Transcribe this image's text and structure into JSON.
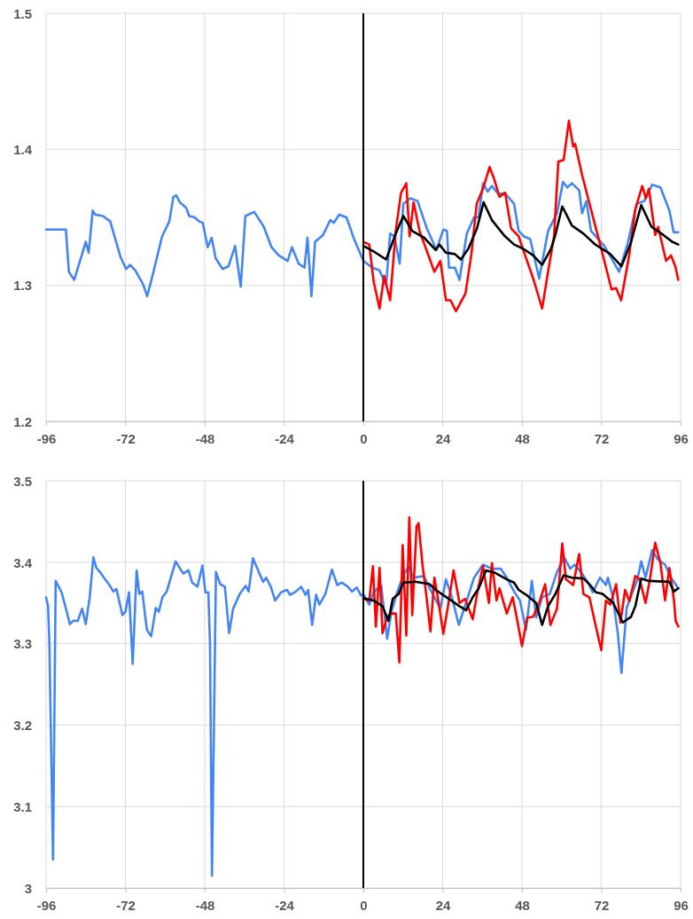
{
  "chart_data": [
    {
      "type": "line",
      "xlim": [
        -96,
        96
      ],
      "xticks": [
        -96,
        -72,
        -48,
        -24,
        0,
        24,
        48,
        72,
        96
      ],
      "ylim": [
        1.2,
        1.5
      ],
      "yticks": [
        1.2,
        1.3,
        1.4,
        1.5
      ],
      "grid": true,
      "marker": "none",
      "line_style": "solid",
      "ref_lines": [
        {
          "axis": "x",
          "value": 0,
          "color": "#000000"
        }
      ],
      "series": [
        {
          "color": "#4285f4",
          "x": [
            -96,
            -90,
            -89.1,
            -87.5,
            -85.1,
            -84,
            -83.1,
            -81.9,
            -81.1,
            -78.8,
            -76.6,
            -73.5,
            -71.8,
            -70.6,
            -69,
            -66.7,
            -65.4,
            -63.6,
            -60.9,
            -58.7,
            -57.5,
            -56.6,
            -55.5,
            -53.6,
            -52.7,
            -51.1,
            -49.7,
            -48.6,
            -47.1,
            -45.9,
            -44.7,
            -42.6,
            -40.8,
            -38.8,
            -37.1,
            -35.7,
            -33,
            -30.1,
            -27.8,
            -25.6,
            -22.9,
            -21.6,
            -19.6,
            -17.8,
            -16.9,
            -15.7,
            -14.6,
            -12.2,
            -10,
            -8.9,
            -7.3,
            -5.1,
            -2.8,
            0,
            2.7,
            4.9,
            6.9,
            8.1,
            9.4,
            11,
            12.1,
            14.3,
            16.4,
            19.2,
            22.1,
            24.2,
            25.3,
            25.9,
            27.7,
            29.1,
            31.3,
            33.5,
            34.9,
            36.2,
            37.6,
            38.9,
            40.9,
            42.7,
            45.6,
            47,
            48.6,
            50.5,
            53.2,
            55.9,
            58.6,
            60.4,
            61.7,
            63.1,
            65.3,
            66.2,
            67.5,
            68.9,
            72.9,
            77.4,
            80,
            82.7,
            85,
            87.4,
            89.9,
            92.6,
            93.9,
            95.3
          ],
          "values": [
            1.341,
            1.341,
            1.31,
            1.304,
            1.323,
            1.332,
            1.324,
            1.355,
            1.352,
            1.351,
            1.347,
            1.321,
            1.312,
            1.315,
            1.311,
            1.301,
            1.292,
            1.309,
            1.336,
            1.347,
            1.365,
            1.366,
            1.361,
            1.357,
            1.351,
            1.35,
            1.347,
            1.346,
            1.328,
            1.335,
            1.32,
            1.312,
            1.314,
            1.329,
            1.299,
            1.351,
            1.354,
            1.343,
            1.328,
            1.322,
            1.318,
            1.328,
            1.316,
            1.313,
            1.335,
            1.292,
            1.332,
            1.337,
            1.348,
            1.346,
            1.352,
            1.35,
            1.334,
            1.318,
            1.313,
            1.311,
            1.3,
            1.338,
            1.336,
            1.316,
            1.36,
            1.364,
            1.362,
            1.342,
            1.326,
            1.341,
            1.34,
            1.313,
            1.313,
            1.304,
            1.338,
            1.35,
            1.35,
            1.375,
            1.369,
            1.373,
            1.367,
            1.368,
            1.36,
            1.34,
            1.336,
            1.334,
            1.305,
            1.34,
            1.353,
            1.376,
            1.372,
            1.375,
            1.37,
            1.353,
            1.362,
            1.34,
            1.329,
            1.31,
            1.331,
            1.36,
            1.362,
            1.374,
            1.372,
            1.355,
            1.339,
            1.339
          ]
        },
        {
          "color": "#ff0000",
          "x": [
            0,
            1.8,
            3.1,
            4.9,
            6.3,
            8.1,
            9.8,
            11.4,
            13,
            14,
            15.2,
            17,
            19.7,
            21.5,
            23.3,
            25,
            26.4,
            28,
            30.9,
            32.7,
            34.3,
            36.2,
            38.2,
            39.6,
            41.2,
            42.9,
            44.7,
            47,
            48.8,
            51.4,
            54.1,
            55.9,
            57.7,
            59,
            60.6,
            62.2,
            63.5,
            64.1,
            66.2,
            69.3,
            72.4,
            75.1,
            76.5,
            78,
            80.5,
            82.3,
            84.4,
            85.5,
            86.4,
            88.3,
            89.2,
            91.6,
            93.1,
            94.4,
            95.3
          ],
          "values": [
            1.332,
            1.33,
            1.303,
            1.283,
            1.307,
            1.289,
            1.34,
            1.368,
            1.375,
            1.336,
            1.361,
            1.34,
            1.322,
            1.31,
            1.318,
            1.289,
            1.289,
            1.281,
            1.294,
            1.323,
            1.36,
            1.371,
            1.387,
            1.378,
            1.365,
            1.368,
            1.342,
            1.336,
            1.323,
            1.305,
            1.283,
            1.31,
            1.336,
            1.391,
            1.392,
            1.421,
            1.402,
            1.404,
            1.381,
            1.352,
            1.323,
            1.297,
            1.298,
            1.289,
            1.323,
            1.356,
            1.373,
            1.364,
            1.371,
            1.337,
            1.343,
            1.318,
            1.322,
            1.314,
            1.304
          ]
        },
        {
          "color": "#000000",
          "x": [
            0,
            3.1,
            6.9,
            9.8,
            12.1,
            14.8,
            18.4,
            21.9,
            23,
            25,
            27.7,
            29.5,
            31.8,
            34.4,
            36.4,
            38.9,
            42.5,
            45.6,
            48.3,
            51.4,
            54.1,
            56.8,
            58.1,
            60.2,
            63.1,
            66.6,
            70.2,
            74.7,
            78.1,
            80.9,
            84.1,
            87.2,
            90.8,
            93.5,
            95.3
          ],
          "values": [
            1.329,
            1.325,
            1.319,
            1.338,
            1.351,
            1.34,
            1.335,
            1.326,
            1.33,
            1.324,
            1.323,
            1.319,
            1.327,
            1.342,
            1.361,
            1.348,
            1.337,
            1.33,
            1.327,
            1.322,
            1.315,
            1.327,
            1.337,
            1.358,
            1.344,
            1.338,
            1.33,
            1.323,
            1.314,
            1.331,
            1.359,
            1.343,
            1.337,
            1.332,
            1.33
          ]
        }
      ]
    },
    {
      "type": "line",
      "xlim": [
        -96,
        96
      ],
      "xticks": [
        -96,
        -72,
        -48,
        -24,
        0,
        24,
        48,
        72,
        96
      ],
      "ylim": [
        3,
        3.5
      ],
      "yticks": [
        3,
        3.1,
        3.2,
        3.3,
        3.4,
        3.5
      ],
      "grid": true,
      "marker": "none",
      "line_style": "solid",
      "ref_lines": [
        {
          "axis": "x",
          "value": 0,
          "color": "#000000"
        }
      ],
      "series": [
        {
          "color": "#4285f4",
          "x": [
            -96,
            -95.4,
            -95,
            -93.9,
            -93.1,
            -91.3,
            -90,
            -88.8,
            -87.8,
            -86.4,
            -85.1,
            -84,
            -82.8,
            -81.7,
            -80.8,
            -79.7,
            -78.3,
            -77,
            -75.6,
            -74.7,
            -72.9,
            -72,
            -70.9,
            -69.8,
            -68.6,
            -67.8,
            -66.9,
            -65.5,
            -64.2,
            -62.8,
            -61.9,
            -60.8,
            -59.5,
            -56.8,
            -54.5,
            -52.9,
            -51.8,
            -50.2,
            -48.7,
            -47.8,
            -46.9,
            -46.4,
            -45.8,
            -44.6,
            -43.3,
            -41.9,
            -40.6,
            -39.4,
            -37.4,
            -35.6,
            -34.7,
            -33.4,
            -31.1,
            -30.3,
            -29.4,
            -28,
            -26.7,
            -24.9,
            -23.1,
            -22.2,
            -20.4,
            -18.8,
            -17.5,
            -16.7,
            -15.5,
            -14.3,
            -13.3,
            -11.5,
            -9.5,
            -7.9,
            -6.5,
            -4.7,
            -3.4,
            -2,
            -0.7,
            0,
            1.8,
            3.1,
            5.4,
            7.2,
            8.5,
            10.3,
            12.1,
            13.7,
            15.2,
            18.3,
            20.1,
            23.3,
            25,
            26.8,
            28.9,
            31.3,
            33.5,
            36.2,
            38.9,
            41.6,
            43.4,
            45.6,
            47.4,
            49.2,
            51,
            52.3,
            54.1,
            56.4,
            58.6,
            60.8,
            62.6,
            64,
            65.8,
            68,
            69.4,
            71.6,
            73.4,
            74,
            75.4,
            77,
            78.1,
            79.7,
            81.4,
            82.8,
            84.1,
            85.4,
            87.4,
            89,
            91.3,
            93.1,
            95.3
          ],
          "values": [
            3.357,
            3.346,
            3.3,
            3.035,
            3.377,
            3.363,
            3.343,
            3.324,
            3.328,
            3.328,
            3.343,
            3.324,
            3.357,
            3.406,
            3.393,
            3.388,
            3.38,
            3.373,
            3.364,
            3.367,
            3.335,
            3.339,
            3.363,
            3.275,
            3.39,
            3.361,
            3.364,
            3.317,
            3.309,
            3.344,
            3.339,
            3.357,
            3.364,
            3.401,
            3.386,
            3.39,
            3.375,
            3.37,
            3.396,
            3.363,
            3.363,
            3.3,
            3.015,
            3.388,
            3.373,
            3.37,
            3.313,
            3.343,
            3.361,
            3.371,
            3.364,
            3.405,
            3.383,
            3.376,
            3.381,
            3.37,
            3.353,
            3.363,
            3.366,
            3.36,
            3.364,
            3.37,
            3.36,
            3.366,
            3.323,
            3.36,
            3.348,
            3.361,
            3.391,
            3.372,
            3.375,
            3.37,
            3.364,
            3.369,
            3.359,
            3.361,
            3.348,
            3.363,
            3.372,
            3.306,
            3.339,
            3.364,
            3.384,
            3.395,
            3.381,
            3.383,
            3.368,
            3.343,
            3.379,
            3.357,
            3.323,
            3.353,
            3.381,
            3.397,
            3.392,
            3.392,
            3.381,
            3.364,
            3.353,
            3.317,
            3.377,
            3.332,
            3.357,
            3.361,
            3.388,
            3.406,
            3.392,
            3.397,
            3.388,
            3.375,
            3.363,
            3.381,
            3.372,
            3.381,
            3.359,
            3.313,
            3.264,
            3.344,
            3.363,
            3.377,
            3.401,
            3.381,
            3.415,
            3.404,
            3.397,
            3.381,
            3.368
          ]
        },
        {
          "color": "#ff0000",
          "x": [
            0,
            1.8,
            2.9,
            3.8,
            4.9,
            5.8,
            7.2,
            8.5,
            9.8,
            10.9,
            11.9,
            13,
            13.9,
            14.8,
            16.1,
            16.7,
            17.9,
            18.8,
            20.3,
            21.5,
            22.8,
            24.2,
            25.9,
            27.3,
            29.1,
            30.8,
            33.1,
            34.4,
            36.2,
            38,
            38.9,
            40.3,
            41.2,
            43.4,
            45.2,
            46.5,
            48,
            49.6,
            51.4,
            53.2,
            55,
            56.6,
            58.6,
            60.2,
            61.3,
            63.5,
            65.3,
            66.6,
            68.4,
            70.2,
            72,
            73.4,
            74.7,
            76.5,
            77.8,
            79.2,
            80.5,
            82.3,
            83.6,
            85.4,
            86.8,
            88.3,
            89.9,
            91.3,
            92.6,
            94,
            94.5,
            95.3
          ],
          "values": [
            3.355,
            3.353,
            3.395,
            3.321,
            3.393,
            3.313,
            3.333,
            3.337,
            3.337,
            3.277,
            3.421,
            3.31,
            3.455,
            3.335,
            3.444,
            3.448,
            3.397,
            3.368,
            3.315,
            3.381,
            3.35,
            3.312,
            3.353,
            3.39,
            3.35,
            3.355,
            3.33,
            3.361,
            3.395,
            3.35,
            3.399,
            3.353,
            3.368,
            3.337,
            3.357,
            3.33,
            3.297,
            3.332,
            3.333,
            3.35,
            3.373,
            3.323,
            3.343,
            3.423,
            3.379,
            3.372,
            3.41,
            3.361,
            3.357,
            3.324,
            3.292,
            3.353,
            3.348,
            3.373,
            3.326,
            3.366,
            3.352,
            3.383,
            3.379,
            3.35,
            3.381,
            3.424,
            3.399,
            3.353,
            3.393,
            3.353,
            3.328,
            3.321
          ]
        },
        {
          "color": "#000000",
          "x": [
            0,
            3.1,
            5.8,
            7.6,
            8.9,
            10.7,
            12.1,
            15.7,
            20.1,
            21.9,
            23.7,
            25.9,
            29.1,
            31.1,
            33.1,
            34.9,
            37.1,
            39.8,
            43.4,
            45.6,
            47,
            49.6,
            52.3,
            54.1,
            55.9,
            58.1,
            60.6,
            63.1,
            66.6,
            68.4,
            70.4,
            72.4,
            75.6,
            78.5,
            81,
            82.3,
            84.1,
            86.4,
            92.6,
            94,
            95.3
          ],
          "values": [
            3.356,
            3.353,
            3.346,
            3.328,
            3.355,
            3.361,
            3.375,
            3.376,
            3.373,
            3.366,
            3.361,
            3.355,
            3.346,
            3.341,
            3.357,
            3.368,
            3.39,
            3.387,
            3.379,
            3.375,
            3.366,
            3.359,
            3.35,
            3.323,
            3.346,
            3.361,
            3.384,
            3.381,
            3.38,
            3.373,
            3.363,
            3.361,
            3.35,
            3.326,
            3.333,
            3.346,
            3.38,
            3.377,
            3.376,
            3.364,
            3.368
          ]
        }
      ]
    }
  ]
}
